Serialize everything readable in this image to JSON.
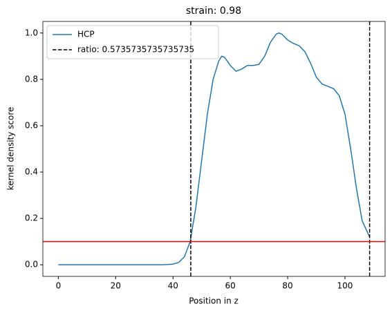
{
  "chart_data": {
    "type": "line",
    "title": "strain: 0.98",
    "x_label": "Position in z",
    "y_label": "kernel density score",
    "x": [
      0,
      10,
      20,
      30,
      36,
      38,
      40,
      42,
      44,
      46,
      48,
      50,
      52,
      54,
      56,
      57,
      58,
      60,
      62,
      64,
      66,
      68,
      70,
      72,
      74,
      76,
      77,
      78,
      80,
      82,
      84,
      86,
      88,
      90,
      92,
      94,
      96,
      98,
      100,
      102,
      104,
      106,
      108.6
    ],
    "series": [
      {
        "name": "HCP",
        "color": "#1f77b4",
        "values": [
          0,
          0,
          0,
          0,
          0,
          0.001,
          0.003,
          0.01,
          0.035,
          0.1,
          0.25,
          0.45,
          0.65,
          0.8,
          0.88,
          0.9,
          0.895,
          0.86,
          0.835,
          0.845,
          0.86,
          0.86,
          0.865,
          0.9,
          0.96,
          0.995,
          1.0,
          0.995,
          0.97,
          0.955,
          0.945,
          0.92,
          0.87,
          0.81,
          0.78,
          0.77,
          0.76,
          0.73,
          0.65,
          0.5,
          0.33,
          0.19,
          0.12
        ]
      }
    ],
    "vlines": {
      "name": "ratio: 0.5735735735735735",
      "color": "#000000",
      "values": [
        46.2,
        108.6
      ]
    },
    "hline": {
      "value": 0.1,
      "color": "#ff0000"
    },
    "xlim": [
      -5.4,
      114
    ],
    "ylim": [
      -0.05,
      1.05
    ],
    "xticks": [
      0,
      20,
      40,
      60,
      80,
      100
    ],
    "yticks": [
      {
        "value": 0,
        "label": "0.0"
      },
      0.2,
      0.4,
      0.6,
      0.8,
      {
        "value": 1,
        "label": "1.0"
      }
    ],
    "legend": "upper left"
  }
}
